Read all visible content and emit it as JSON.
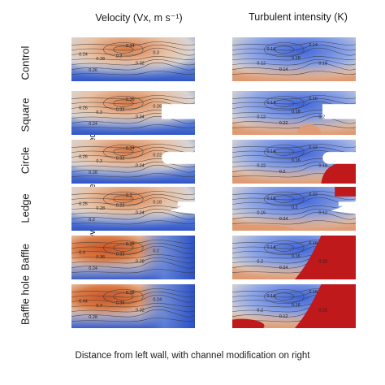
{
  "titles": {
    "velocity": "Velocity (Vx, m s⁻¹)",
    "turbulence": "Turbulent intensity (K)"
  },
  "rows": [
    {
      "id": "control",
      "label": "Control",
      "shape": "none",
      "vel_labels": [
        "0.24",
        "0.28",
        "0.3",
        "0.32",
        "0.26",
        "0.3",
        "0.34"
      ],
      "turb_labels": [
        "0.16",
        "0.18",
        "0.14",
        "0.12",
        "0.18",
        "0.14"
      ]
    },
    {
      "id": "square",
      "label": "Square",
      "shape": "square",
      "vel_labels": [
        "0.26",
        "0.3",
        "0.32",
        "0.34",
        "0.24",
        "0.28",
        "0.36"
      ],
      "turb_labels": [
        "0.14",
        "0.18",
        "0.16",
        "0.12",
        "0.2",
        "0.22"
      ]
    },
    {
      "id": "circle",
      "label": "Circle",
      "shape": "circle",
      "vel_labels": [
        "0.26",
        "0.3",
        "0.32",
        "0.24",
        "0.28",
        "0.22",
        "0.34"
      ],
      "turb_labels": [
        "0.14",
        "0.16",
        "0.12",
        "0.22",
        "0.18",
        "0.2"
      ]
    },
    {
      "id": "ledge",
      "label": "Ledge",
      "shape": "ledge",
      "vel_labels": [
        "0.26",
        "0.28",
        "0.22",
        "0.24",
        "0.2",
        "0.18",
        "0.3"
      ],
      "turb_labels": [
        "0.18",
        "0.2",
        "0.22",
        "0.16",
        "0.12",
        "0.24"
      ]
    },
    {
      "id": "baffle",
      "label": "Baffle",
      "shape": "baffle",
      "vel_labels": [
        "0.4",
        "0.36",
        "0.32",
        "0.28",
        "0.24",
        "0.2",
        "0.38"
      ],
      "turb_labels": [
        "0.14",
        "0.16",
        "0.18",
        "0.2",
        "0.22",
        "0.24"
      ]
    },
    {
      "id": "baffle-hole",
      "label": "Baffle hole",
      "shape": "baffle",
      "vel_labels": [
        "0.44",
        "0.4",
        "0.36",
        "0.32",
        "0.28",
        "0.24",
        "0.38"
      ],
      "turb_labels": [
        "0.14",
        "0.16",
        "0.18",
        "0.2",
        "0.22",
        "0.12"
      ]
    }
  ],
  "axes": {
    "y": "Elevation above channel bed",
    "x": "Distance from left wall, with channel modification on right"
  },
  "colors": {
    "velocity_high": "#d97a45",
    "velocity_mid": "#e8c2a6",
    "velocity_neutral": "#d9d4d2",
    "velocity_low": "#5b7fd9",
    "velocity_lowest": "#2b4fc4",
    "turb_low": "#3f64d8",
    "turb_mid": "#8fa6e6",
    "turb_neutral": "#d9d4d2",
    "turb_high": "#e09a72",
    "turb_max": "#c0191c"
  }
}
